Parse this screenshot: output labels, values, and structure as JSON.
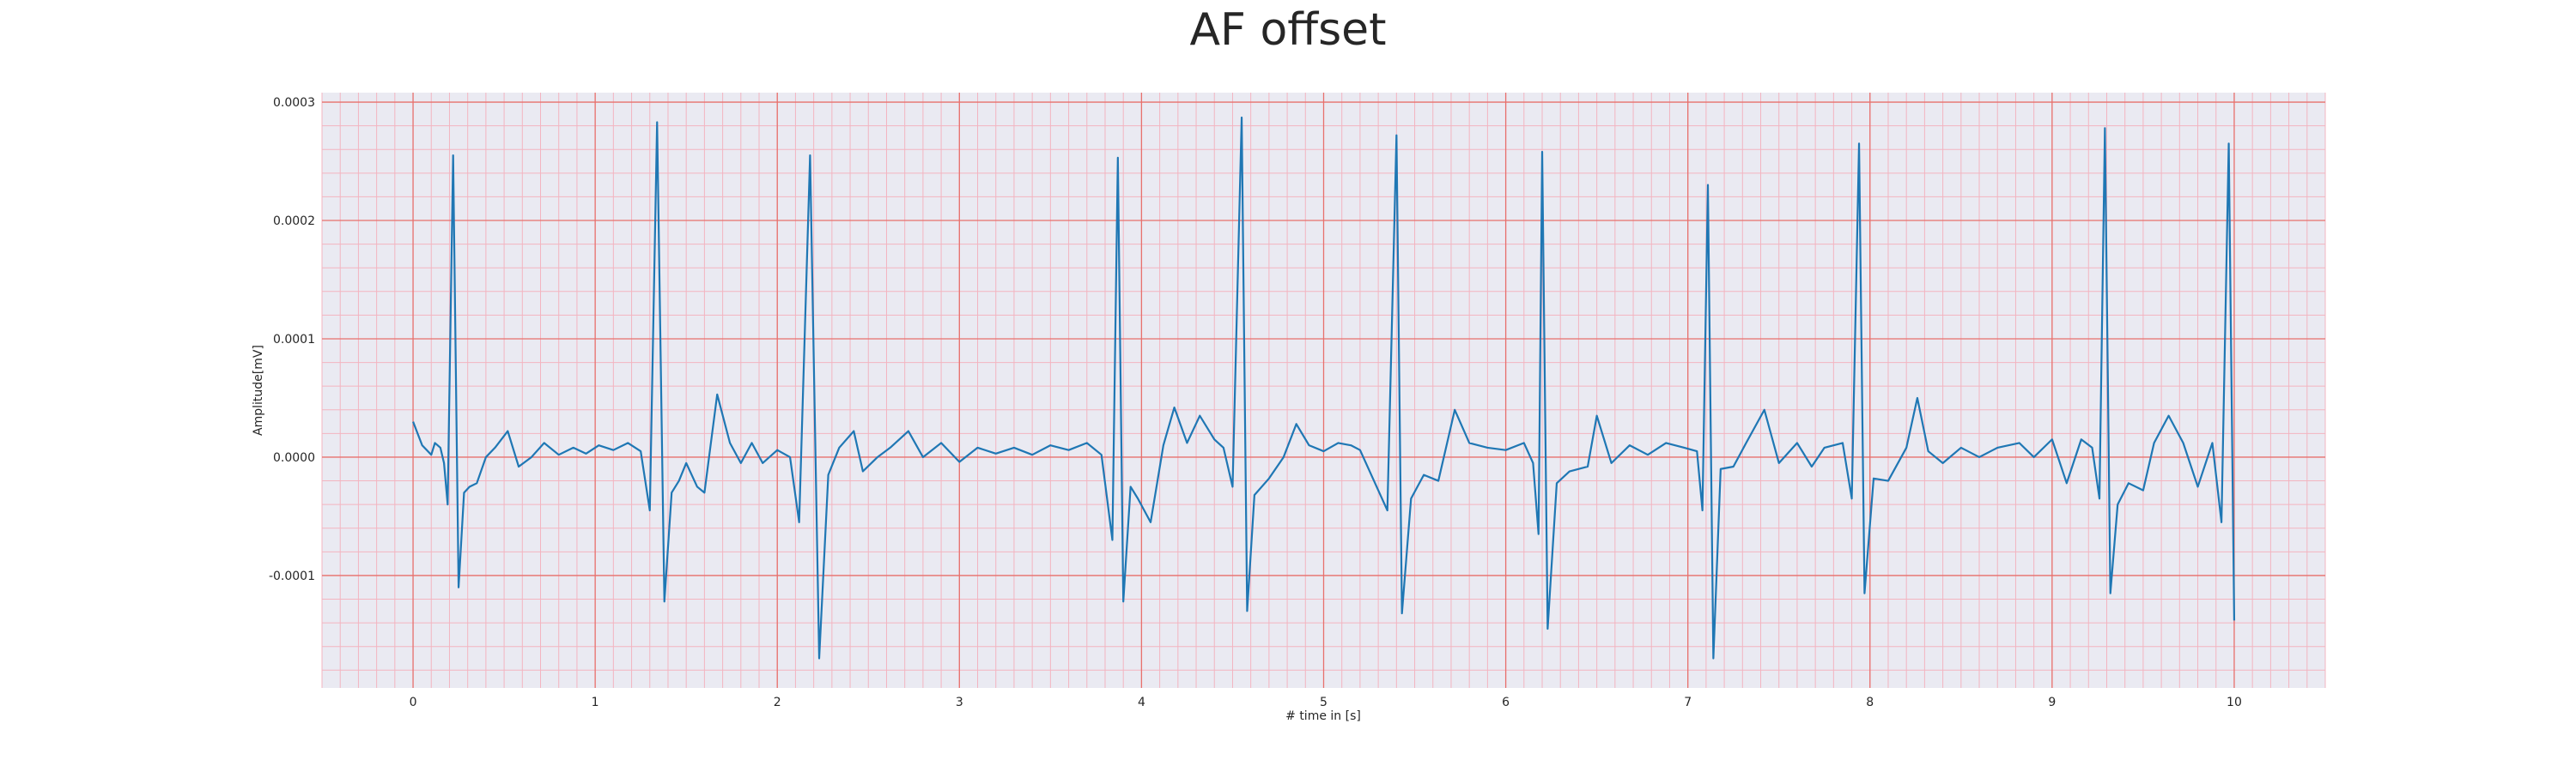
{
  "chart_data": {
    "type": "line",
    "title": "AF offset",
    "xlabel": "# time in [s]",
    "ylabel": "Amplitude[mV]",
    "xlim": [
      -0.5,
      10.5
    ],
    "ylim": [
      -0.000195,
      0.000308
    ],
    "x_ticks": [
      0,
      1,
      2,
      3,
      4,
      5,
      6,
      7,
      8,
      9,
      10
    ],
    "x_tick_labels": [
      "0",
      "1",
      "2",
      "3",
      "4",
      "5",
      "6",
      "7",
      "8",
      "9",
      "10"
    ],
    "y_ticks": [
      -0.0001,
      0.0,
      0.0001,
      0.0002,
      0.0003
    ],
    "y_tick_labels": [
      "-0.0001",
      "0.0000",
      "0.0001",
      "0.0002",
      "0.0003"
    ],
    "grid": "major and minor",
    "background_color": "#eaeaf2",
    "major_grid_color": "#e8716d",
    "minor_grid_color": "#f3b4c0",
    "series": [
      {
        "color": "#1f77b4",
        "points": [
          [
            0.0,
            3e-05
          ],
          [
            0.05,
            1e-05
          ],
          [
            0.1,
            2e-06
          ],
          [
            0.12,
            1.2e-05
          ],
          [
            0.15,
            8e-06
          ],
          [
            0.17,
            -5e-06
          ],
          [
            0.19,
            -4e-05
          ],
          [
            0.22,
            0.000255
          ],
          [
            0.25,
            -0.00011
          ],
          [
            0.28,
            -3e-05
          ],
          [
            0.31,
            -2.5e-05
          ],
          [
            0.35,
            -2.2e-05
          ],
          [
            0.4,
            0.0
          ],
          [
            0.45,
            8e-06
          ],
          [
            0.52,
            2.2e-05
          ],
          [
            0.58,
            -8e-06
          ],
          [
            0.65,
            0.0
          ],
          [
            0.72,
            1.2e-05
          ],
          [
            0.8,
            2e-06
          ],
          [
            0.88,
            8e-06
          ],
          [
            0.95,
            3e-06
          ],
          [
            1.02,
            1e-05
          ],
          [
            1.1,
            6e-06
          ],
          [
            1.18,
            1.2e-05
          ],
          [
            1.25,
            5e-06
          ],
          [
            1.3,
            -4.5e-05
          ],
          [
            1.34,
            0.000283
          ],
          [
            1.38,
            -0.000122
          ],
          [
            1.42,
            -3e-05
          ],
          [
            1.46,
            -2e-05
          ],
          [
            1.5,
            -5e-06
          ],
          [
            1.56,
            -2.5e-05
          ],
          [
            1.6,
            -3e-05
          ],
          [
            1.67,
            5.3e-05
          ],
          [
            1.74,
            1.2e-05
          ],
          [
            1.8,
            -5e-06
          ],
          [
            1.86,
            1.2e-05
          ],
          [
            1.92,
            -5e-06
          ],
          [
            2.0,
            6e-06
          ],
          [
            2.07,
            0.0
          ],
          [
            2.12,
            -5.5e-05
          ],
          [
            2.18,
            0.000255
          ],
          [
            2.23,
            -0.00017
          ],
          [
            2.28,
            -1.5e-05
          ],
          [
            2.34,
            8e-06
          ],
          [
            2.42,
            2.2e-05
          ],
          [
            2.47,
            -1.2e-05
          ],
          [
            2.55,
            0.0
          ],
          [
            2.62,
            8e-06
          ],
          [
            2.72,
            2.2e-05
          ],
          [
            2.8,
            0.0
          ],
          [
            2.9,
            1.2e-05
          ],
          [
            3.0,
            -4e-06
          ],
          [
            3.1,
            8e-06
          ],
          [
            3.2,
            3e-06
          ],
          [
            3.3,
            8e-06
          ],
          [
            3.4,
            2e-06
          ],
          [
            3.5,
            1e-05
          ],
          [
            3.6,
            6e-06
          ],
          [
            3.7,
            1.2e-05
          ],
          [
            3.78,
            2e-06
          ],
          [
            3.84,
            -7e-05
          ],
          [
            3.87,
            0.000253
          ],
          [
            3.9,
            -0.000122
          ],
          [
            3.94,
            -2.5e-05
          ],
          [
            3.98,
            -3.5e-05
          ],
          [
            4.05,
            -5.5e-05
          ],
          [
            4.12,
            1e-05
          ],
          [
            4.18,
            4.2e-05
          ],
          [
            4.25,
            1.2e-05
          ],
          [
            4.32,
            3.5e-05
          ],
          [
            4.4,
            1.5e-05
          ],
          [
            4.45,
            8e-06
          ],
          [
            4.5,
            -2.5e-05
          ],
          [
            4.55,
            0.000287
          ],
          [
            4.58,
            -0.00013
          ],
          [
            4.62,
            -3.2e-05
          ],
          [
            4.7,
            -1.8e-05
          ],
          [
            4.78,
            0.0
          ],
          [
            4.85,
            2.8e-05
          ],
          [
            4.92,
            1e-05
          ],
          [
            5.0,
            5e-06
          ],
          [
            5.08,
            1.2e-05
          ],
          [
            5.15,
            1e-05
          ],
          [
            5.2,
            6e-06
          ],
          [
            5.35,
            -4.5e-05
          ],
          [
            5.4,
            0.000272
          ],
          [
            5.43,
            -0.000132
          ],
          [
            5.48,
            -3.5e-05
          ],
          [
            5.55,
            -1.5e-05
          ],
          [
            5.63,
            -2e-05
          ],
          [
            5.72,
            4e-05
          ],
          [
            5.8,
            1.2e-05
          ],
          [
            5.9,
            8e-06
          ],
          [
            6.0,
            6e-06
          ],
          [
            6.1,
            1.2e-05
          ],
          [
            6.15,
            -5e-06
          ],
          [
            6.18,
            -6.5e-05
          ],
          [
            6.2,
            0.000258
          ],
          [
            6.23,
            -0.000145
          ],
          [
            6.28,
            -2.2e-05
          ],
          [
            6.35,
            -1.2e-05
          ],
          [
            6.45,
            -8e-06
          ],
          [
            6.5,
            3.5e-05
          ],
          [
            6.58,
            -5e-06
          ],
          [
            6.68,
            1e-05
          ],
          [
            6.78,
            2e-06
          ],
          [
            6.88,
            1.2e-05
          ],
          [
            6.98,
            8e-06
          ],
          [
            7.05,
            5e-06
          ],
          [
            7.08,
            -4.5e-05
          ],
          [
            7.11,
            0.00023
          ],
          [
            7.14,
            -0.00017
          ],
          [
            7.18,
            -1e-05
          ],
          [
            7.25,
            -8e-06
          ],
          [
            7.32,
            1.2e-05
          ],
          [
            7.42,
            4e-05
          ],
          [
            7.5,
            -5e-06
          ],
          [
            7.6,
            1.2e-05
          ],
          [
            7.68,
            -8e-06
          ],
          [
            7.75,
            8e-06
          ],
          [
            7.85,
            1.2e-05
          ],
          [
            7.9,
            -3.5e-05
          ],
          [
            7.94,
            0.000265
          ],
          [
            7.97,
            -0.000115
          ],
          [
            8.02,
            -1.8e-05
          ],
          [
            8.1,
            -2e-05
          ],
          [
            8.2,
            8e-06
          ],
          [
            8.26,
            5e-05
          ],
          [
            8.32,
            5e-06
          ],
          [
            8.4,
            -5e-06
          ],
          [
            8.5,
            8e-06
          ],
          [
            8.6,
            0.0
          ],
          [
            8.7,
            8e-06
          ],
          [
            8.82,
            1.2e-05
          ],
          [
            8.9,
            0.0
          ],
          [
            9.0,
            1.5e-05
          ],
          [
            9.08,
            -2.2e-05
          ],
          [
            9.16,
            1.5e-05
          ],
          [
            9.22,
            8e-06
          ],
          [
            9.26,
            -3.5e-05
          ],
          [
            9.29,
            0.000278
          ],
          [
            9.32,
            -0.000115
          ],
          [
            9.36,
            -4e-05
          ],
          [
            9.42,
            -2.2e-05
          ],
          [
            9.5,
            -2.8e-05
          ],
          [
            9.56,
            1.2e-05
          ],
          [
            9.64,
            3.5e-05
          ],
          [
            9.72,
            1.2e-05
          ],
          [
            9.8,
            -2.5e-05
          ],
          [
            9.88,
            1.2e-05
          ],
          [
            9.93,
            -5.5e-05
          ],
          [
            9.97,
            0.000265
          ],
          [
            10.0,
            -0.000138
          ]
        ]
      }
    ]
  }
}
